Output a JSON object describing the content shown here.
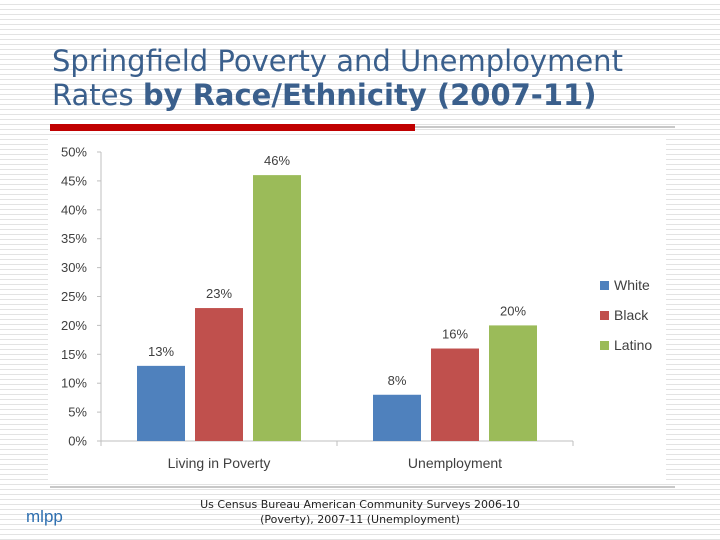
{
  "slide": {
    "title_line1": "Springfield Poverty and Unemployment",
    "title_line2_normal": "Rates ",
    "title_line2_bold": "by Race/Ethnicity (2007-11)",
    "logo_text": "mlpp",
    "source_line1": "Us Census Bureau American Community Surveys 2006-10",
    "source_line2": "(Poverty), 2007-11 (Unemployment)"
  },
  "colors": {
    "title": "#3a5f8c",
    "accent_rule": "#c00000",
    "White": "#4f81bd",
    "Black": "#c0504d",
    "Latino": "#9bbb59"
  },
  "chart_data": {
    "type": "bar",
    "title": "",
    "xlabel": "",
    "ylabel": "",
    "categories": [
      "Living in Poverty",
      "Unemployment"
    ],
    "series": [
      {
        "name": "White",
        "values": [
          13,
          8
        ],
        "labels": [
          "13%",
          "8%"
        ]
      },
      {
        "name": "Black",
        "values": [
          23,
          16
        ],
        "labels": [
          "23%",
          "16%"
        ]
      },
      {
        "name": "Latino",
        "values": [
          46,
          20
        ],
        "labels": [
          "46%",
          "20%"
        ]
      }
    ],
    "ylim": [
      0,
      50
    ],
    "yticks": [
      0,
      5,
      10,
      15,
      20,
      25,
      30,
      35,
      40,
      45,
      50
    ],
    "ytick_labels": [
      "0%",
      "5%",
      "10%",
      "15%",
      "20%",
      "25%",
      "30%",
      "35%",
      "40%",
      "45%",
      "50%"
    ],
    "grid": false,
    "legend": "right"
  }
}
